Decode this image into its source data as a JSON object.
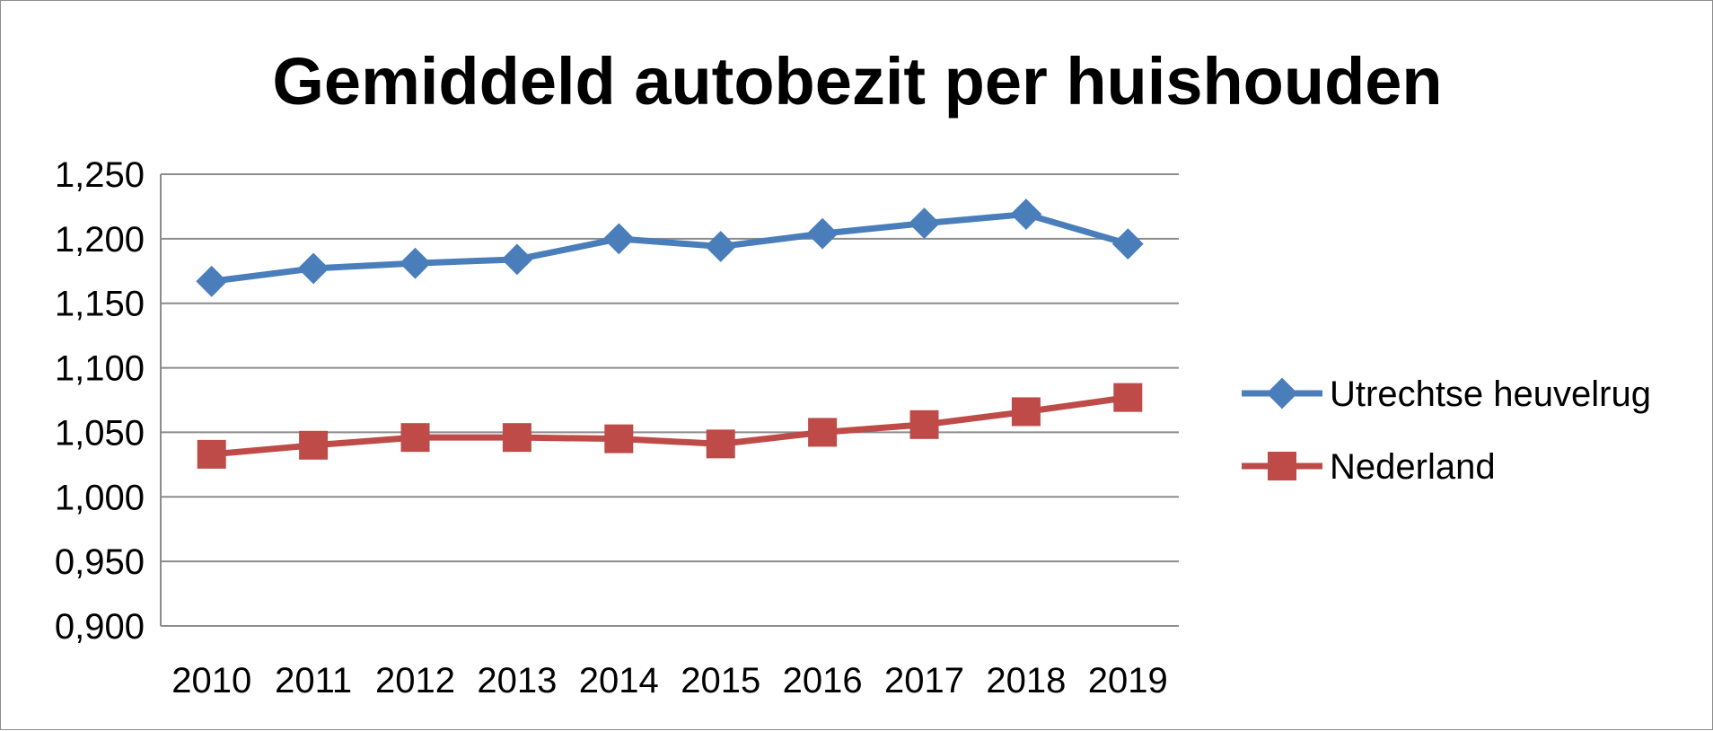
{
  "chart_data": {
    "type": "line",
    "title": "Gemiddeld autobezit per huishouden",
    "xlabel": "",
    "ylabel": "",
    "categories": [
      "2010",
      "2011",
      "2012",
      "2013",
      "2014",
      "2015",
      "2016",
      "2017",
      "2018",
      "2019"
    ],
    "y_ticks": [
      "0,900",
      "0,950",
      "1,000",
      "1,050",
      "1,100",
      "1,150",
      "1,200",
      "1,250"
    ],
    "ylim": [
      0.9,
      1.25
    ],
    "grid": "horizontal",
    "legend_position": "right",
    "series": [
      {
        "name": "Utrechtse heuvelrug",
        "color": "#4a7ebb",
        "marker": "diamond",
        "values": [
          1.167,
          1.177,
          1.181,
          1.184,
          1.2,
          1.194,
          1.204,
          1.212,
          1.219,
          1.196
        ]
      },
      {
        "name": "Nederland",
        "color": "#be4b48",
        "marker": "square",
        "values": [
          1.033,
          1.04,
          1.046,
          1.046,
          1.045,
          1.041,
          1.05,
          1.056,
          1.066,
          1.077
        ]
      }
    ]
  }
}
